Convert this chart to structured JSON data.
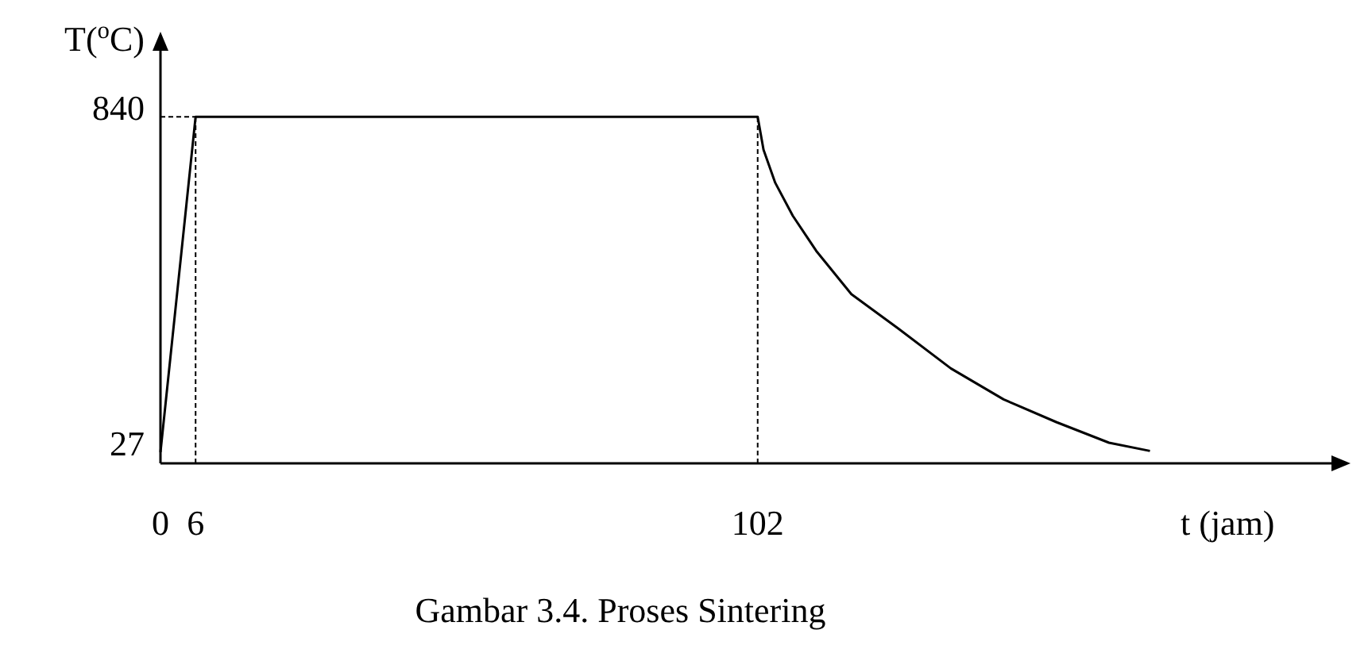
{
  "chart_data": {
    "type": "line",
    "xlabel": "t (jam)",
    "ylabel": "T($^{o}$C)",
    "x": [
      0,
      6,
      102,
      103,
      105,
      108,
      112,
      118,
      126,
      135,
      144,
      153,
      162,
      169
    ],
    "series": [
      {
        "color": "#000000",
        "values": [
          27,
          840,
          840,
          760,
          680,
          600,
          515,
          410,
          327,
          230,
          155,
          100,
          50,
          30
        ]
      },
      {
        "color": "#000000",
        "x": [
          0,
          6
        ],
        "values": [
          840,
          840
        ],
        "line_style": "dotted"
      }
    ],
    "xlim": [
      0,
      200
    ],
    "ylim": [
      0,
      1000
    ],
    "xticks": [
      0,
      6,
      102
    ],
    "yticks": [
      27,
      840
    ],
    "ref_lines": [
      {
        "axis": "x",
        "value": 6,
        "line_style": "dotted",
        "color": "#000000"
      },
      {
        "axis": "x",
        "value": 102,
        "line_style": "dotted",
        "color": "#000000"
      }
    ],
    "marker": "none",
    "line_style": "solid",
    "grid": false,
    "annotations": [
      "Gambar 3.4. Proses Sintering"
    ]
  }
}
